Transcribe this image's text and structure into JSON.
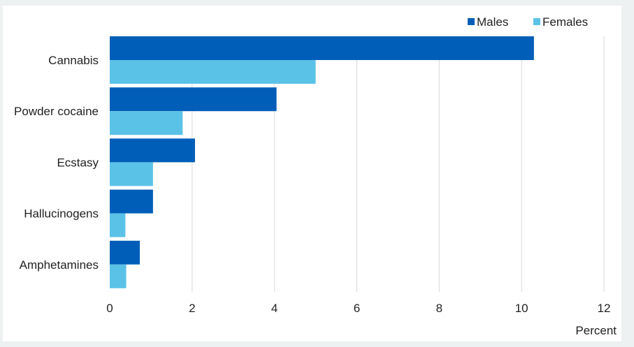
{
  "chart_data": {
    "type": "bar",
    "orientation": "horizontal",
    "categories": [
      "Cannabis",
      "Powder cocaine",
      "Ecstasy",
      "Hallucinogens",
      "Amphetamines"
    ],
    "series": [
      {
        "name": "Males",
        "values": [
          10.3,
          4.05,
          2.07,
          1.05,
          0.73
        ]
      },
      {
        "name": "Females",
        "values": [
          5.0,
          1.77,
          1.05,
          0.38,
          0.4
        ]
      }
    ],
    "xlabel": "Percent",
    "xlim": [
      0,
      12
    ],
    "xticks": [
      "0",
      "2",
      "4",
      "6",
      "8",
      "10",
      "12"
    ],
    "grid": "vertical",
    "legend_position": "top-right",
    "colors": {
      "Males": "#005eb8",
      "Females": "#5bc2e7",
      "grid": "#d9d9d9"
    }
  }
}
